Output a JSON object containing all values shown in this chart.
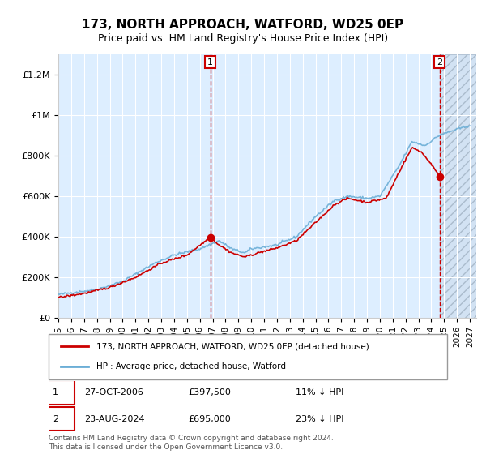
{
  "title": "173, NORTH APPROACH, WATFORD, WD25 0EP",
  "subtitle": "Price paid vs. HM Land Registry's House Price Index (HPI)",
  "ylabel": "",
  "xlim_start": 1995.0,
  "xlim_end": 2027.5,
  "ylim_min": 0,
  "ylim_max": 1300000,
  "yticks": [
    0,
    200000,
    400000,
    600000,
    800000,
    1000000,
    1200000
  ],
  "ytick_labels": [
    "£0",
    "£200K",
    "£400K",
    "£600K",
    "£800K",
    "£1M",
    "£1.2M"
  ],
  "xtick_years": [
    1995,
    1996,
    1997,
    1998,
    1999,
    2000,
    2001,
    2002,
    2003,
    2004,
    2005,
    2006,
    2007,
    2008,
    2009,
    2010,
    2011,
    2012,
    2013,
    2014,
    2015,
    2016,
    2017,
    2018,
    2019,
    2020,
    2021,
    2022,
    2023,
    2024,
    2025,
    2026,
    2027
  ],
  "hpi_color": "#6baed6",
  "sale_color": "#cc0000",
  "annotation_box_color": "#cc0000",
  "sale1_year": 2006.82,
  "sale1_price": 397500,
  "sale2_year": 2024.64,
  "sale2_price": 695000,
  "legend_line1": "173, NORTH APPROACH, WATFORD, WD25 0EP (detached house)",
  "legend_line2": "HPI: Average price, detached house, Watford",
  "note1_label": "1",
  "note1_date": "27-OCT-2006",
  "note1_price": "£397,500",
  "note1_hpi": "11% ↓ HPI",
  "note2_label": "2",
  "note2_date": "23-AUG-2024",
  "note2_price": "£695,000",
  "note2_hpi": "23% ↓ HPI",
  "footer": "Contains HM Land Registry data © Crown copyright and database right 2024.\nThis data is licensed under the Open Government Licence v3.0.",
  "bg_color": "#ddeeff",
  "hatch_color": "#bbccdd",
  "future_hatch_start": 2024.64
}
